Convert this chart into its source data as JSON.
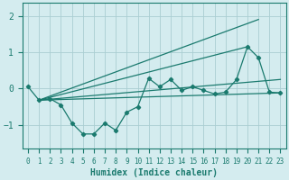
{
  "xlabel": "Humidex (Indice chaleur)",
  "bg_color": "#d4ecef",
  "grid_color": "#aaced2",
  "line_color": "#1a7a6e",
  "xlim": [
    -0.5,
    23.5
  ],
  "ylim": [
    -1.65,
    2.35
  ],
  "yticks": [
    -1,
    0,
    1,
    2
  ],
  "xticks": [
    0,
    1,
    2,
    3,
    4,
    5,
    6,
    7,
    8,
    9,
    10,
    11,
    12,
    13,
    14,
    15,
    16,
    17,
    18,
    19,
    20,
    21,
    22,
    23
  ],
  "main_x": [
    0,
    1,
    2,
    3,
    4,
    5,
    6,
    7,
    8,
    9,
    10,
    11,
    12,
    13,
    14,
    15,
    16,
    17,
    18,
    19,
    20,
    21,
    22,
    23
  ],
  "main_y": [
    0.05,
    -0.32,
    -0.28,
    -0.45,
    -0.95,
    -1.25,
    -1.25,
    -0.95,
    -1.15,
    -0.65,
    -0.5,
    0.28,
    0.05,
    0.25,
    -0.05,
    0.05,
    -0.05,
    -0.15,
    -0.1,
    0.25,
    1.15,
    0.85,
    -0.1,
    -0.12
  ],
  "fan_origin_x": 1,
  "fan_origin_y": -0.32,
  "fan_lines": [
    {
      "x2": 23,
      "y2": -0.12
    },
    {
      "x2": 23,
      "y2": 0.25
    },
    {
      "x2": 20,
      "y2": 1.15
    },
    {
      "x2": 21,
      "y2": 1.9
    }
  ]
}
